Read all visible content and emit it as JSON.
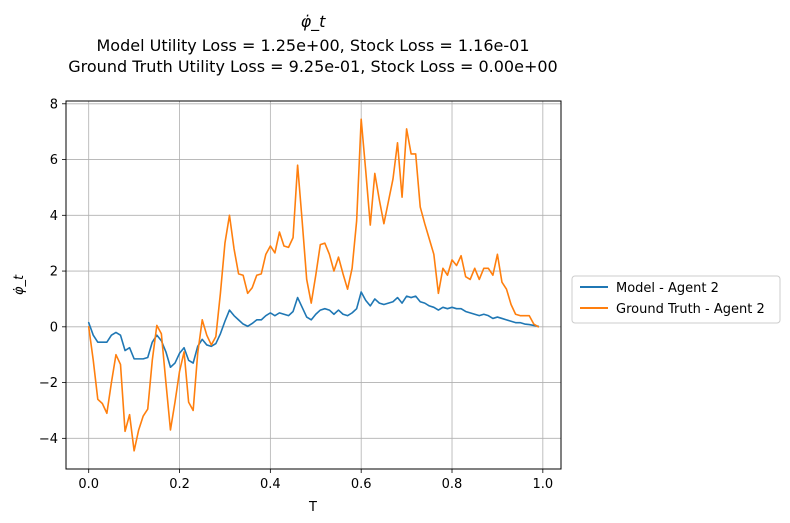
{
  "chart_data": {
    "type": "line",
    "title_symbol": "φ̇_t",
    "title_lines": [
      "Model Utility Loss = 1.25e+00, Stock Loss = 1.16e-01",
      "Ground Truth Utility Loss = 9.25e-01, Stock Loss = 0.00e+00"
    ],
    "xlabel": "T",
    "ylabel": "φ̇_t",
    "xlim": [
      -0.05,
      1.04
    ],
    "ylim": [
      -5.1,
      8.1
    ],
    "xticks": [
      0.0,
      0.2,
      0.4,
      0.6,
      0.8,
      1.0
    ],
    "xtick_labels": [
      "0.0",
      "0.2",
      "0.4",
      "0.6",
      "0.8",
      "1.0"
    ],
    "yticks": [
      -4,
      -2,
      0,
      2,
      4,
      6,
      8
    ],
    "ytick_labels": [
      "−4",
      "−2",
      "0",
      "2",
      "4",
      "6",
      "8"
    ],
    "grid": true,
    "legend_position": "outside-right",
    "series": [
      {
        "name": "Model - Agent 2",
        "color": "#1f77b4",
        "points": [
          [
            0.0,
            0.15
          ],
          [
            0.01,
            -0.3
          ],
          [
            0.02,
            -0.55
          ],
          [
            0.03,
            -0.55
          ],
          [
            0.04,
            -0.55
          ],
          [
            0.05,
            -0.3
          ],
          [
            0.06,
            -0.2
          ],
          [
            0.07,
            -0.3
          ],
          [
            0.08,
            -0.85
          ],
          [
            0.09,
            -0.75
          ],
          [
            0.1,
            -1.15
          ],
          [
            0.11,
            -1.15
          ],
          [
            0.12,
            -1.15
          ],
          [
            0.13,
            -1.1
          ],
          [
            0.14,
            -0.55
          ],
          [
            0.15,
            -0.3
          ],
          [
            0.16,
            -0.5
          ],
          [
            0.17,
            -0.9
          ],
          [
            0.18,
            -1.45
          ],
          [
            0.19,
            -1.3
          ],
          [
            0.2,
            -0.95
          ],
          [
            0.21,
            -0.75
          ],
          [
            0.22,
            -1.2
          ],
          [
            0.23,
            -1.3
          ],
          [
            0.24,
            -0.7
          ],
          [
            0.25,
            -0.45
          ],
          [
            0.26,
            -0.65
          ],
          [
            0.27,
            -0.7
          ],
          [
            0.28,
            -0.6
          ],
          [
            0.29,
            -0.25
          ],
          [
            0.3,
            0.2
          ],
          [
            0.31,
            0.6
          ],
          [
            0.32,
            0.4
          ],
          [
            0.33,
            0.25
          ],
          [
            0.34,
            0.1
          ],
          [
            0.35,
            0.02
          ],
          [
            0.36,
            0.12
          ],
          [
            0.37,
            0.25
          ],
          [
            0.38,
            0.25
          ],
          [
            0.39,
            0.4
          ],
          [
            0.4,
            0.5
          ],
          [
            0.41,
            0.4
          ],
          [
            0.42,
            0.5
          ],
          [
            0.43,
            0.45
          ],
          [
            0.44,
            0.4
          ],
          [
            0.45,
            0.55
          ],
          [
            0.46,
            1.05
          ],
          [
            0.47,
            0.7
          ],
          [
            0.48,
            0.35
          ],
          [
            0.49,
            0.25
          ],
          [
            0.5,
            0.45
          ],
          [
            0.51,
            0.6
          ],
          [
            0.52,
            0.65
          ],
          [
            0.53,
            0.6
          ],
          [
            0.54,
            0.45
          ],
          [
            0.55,
            0.6
          ],
          [
            0.56,
            0.45
          ],
          [
            0.57,
            0.4
          ],
          [
            0.58,
            0.5
          ],
          [
            0.59,
            0.65
          ],
          [
            0.6,
            1.25
          ],
          [
            0.61,
            0.95
          ],
          [
            0.62,
            0.75
          ],
          [
            0.63,
            1.0
          ],
          [
            0.64,
            0.85
          ],
          [
            0.65,
            0.8
          ],
          [
            0.66,
            0.85
          ],
          [
            0.67,
            0.9
          ],
          [
            0.68,
            1.05
          ],
          [
            0.69,
            0.85
          ],
          [
            0.7,
            1.1
          ],
          [
            0.71,
            1.05
          ],
          [
            0.72,
            1.1
          ],
          [
            0.73,
            0.9
          ],
          [
            0.74,
            0.85
          ],
          [
            0.75,
            0.75
          ],
          [
            0.76,
            0.7
          ],
          [
            0.77,
            0.6
          ],
          [
            0.78,
            0.7
          ],
          [
            0.79,
            0.65
          ],
          [
            0.8,
            0.7
          ],
          [
            0.81,
            0.65
          ],
          [
            0.82,
            0.65
          ],
          [
            0.83,
            0.55
          ],
          [
            0.84,
            0.5
          ],
          [
            0.85,
            0.45
          ],
          [
            0.86,
            0.4
          ],
          [
            0.87,
            0.45
          ],
          [
            0.88,
            0.4
          ],
          [
            0.89,
            0.3
          ],
          [
            0.9,
            0.35
          ],
          [
            0.91,
            0.3
          ],
          [
            0.92,
            0.25
          ],
          [
            0.93,
            0.2
          ],
          [
            0.94,
            0.15
          ],
          [
            0.95,
            0.15
          ],
          [
            0.96,
            0.1
          ],
          [
            0.97,
            0.08
          ],
          [
            0.98,
            0.05
          ],
          [
            0.99,
            0.02
          ]
        ]
      },
      {
        "name": "Ground Truth - Agent 2",
        "color": "#ff7f0e",
        "points": [
          [
            0.0,
            0.0
          ],
          [
            0.01,
            -1.2
          ],
          [
            0.02,
            -2.6
          ],
          [
            0.03,
            -2.75
          ],
          [
            0.04,
            -3.1
          ],
          [
            0.05,
            -2.0
          ],
          [
            0.06,
            -1.0
          ],
          [
            0.07,
            -1.35
          ],
          [
            0.08,
            -3.75
          ],
          [
            0.09,
            -3.15
          ],
          [
            0.1,
            -4.45
          ],
          [
            0.11,
            -3.7
          ],
          [
            0.12,
            -3.2
          ],
          [
            0.13,
            -2.95
          ],
          [
            0.14,
            -1.2
          ],
          [
            0.15,
            0.05
          ],
          [
            0.16,
            -0.25
          ],
          [
            0.17,
            -2.0
          ],
          [
            0.18,
            -3.7
          ],
          [
            0.19,
            -2.7
          ],
          [
            0.2,
            -1.6
          ],
          [
            0.21,
            -0.9
          ],
          [
            0.22,
            -2.7
          ],
          [
            0.23,
            -3.0
          ],
          [
            0.24,
            -0.95
          ],
          [
            0.25,
            0.25
          ],
          [
            0.26,
            -0.3
          ],
          [
            0.27,
            -0.65
          ],
          [
            0.28,
            -0.35
          ],
          [
            0.29,
            1.2
          ],
          [
            0.3,
            3.0
          ],
          [
            0.31,
            4.0
          ],
          [
            0.32,
            2.8
          ],
          [
            0.33,
            1.9
          ],
          [
            0.34,
            1.85
          ],
          [
            0.35,
            1.2
          ],
          [
            0.36,
            1.4
          ],
          [
            0.37,
            1.85
          ],
          [
            0.38,
            1.9
          ],
          [
            0.39,
            2.6
          ],
          [
            0.4,
            2.9
          ],
          [
            0.41,
            2.65
          ],
          [
            0.42,
            3.4
          ],
          [
            0.43,
            2.9
          ],
          [
            0.44,
            2.85
          ],
          [
            0.45,
            3.2
          ],
          [
            0.46,
            5.8
          ],
          [
            0.47,
            3.8
          ],
          [
            0.48,
            1.7
          ],
          [
            0.49,
            0.85
          ],
          [
            0.5,
            1.85
          ],
          [
            0.51,
            2.95
          ],
          [
            0.52,
            3.0
          ],
          [
            0.53,
            2.6
          ],
          [
            0.54,
            2.0
          ],
          [
            0.55,
            2.5
          ],
          [
            0.56,
            1.9
          ],
          [
            0.57,
            1.35
          ],
          [
            0.58,
            2.1
          ],
          [
            0.59,
            3.8
          ],
          [
            0.6,
            7.45
          ],
          [
            0.61,
            5.6
          ],
          [
            0.62,
            3.65
          ],
          [
            0.63,
            5.5
          ],
          [
            0.64,
            4.55
          ],
          [
            0.65,
            3.7
          ],
          [
            0.66,
            4.5
          ],
          [
            0.67,
            5.3
          ],
          [
            0.68,
            6.6
          ],
          [
            0.69,
            4.65
          ],
          [
            0.7,
            7.1
          ],
          [
            0.71,
            6.2
          ],
          [
            0.72,
            6.2
          ],
          [
            0.73,
            4.3
          ],
          [
            0.74,
            3.7
          ],
          [
            0.75,
            3.15
          ],
          [
            0.76,
            2.6
          ],
          [
            0.77,
            1.2
          ],
          [
            0.78,
            2.1
          ],
          [
            0.79,
            1.85
          ],
          [
            0.8,
            2.4
          ],
          [
            0.81,
            2.2
          ],
          [
            0.82,
            2.55
          ],
          [
            0.83,
            1.8
          ],
          [
            0.84,
            1.7
          ],
          [
            0.85,
            2.1
          ],
          [
            0.86,
            1.7
          ],
          [
            0.87,
            2.1
          ],
          [
            0.88,
            2.1
          ],
          [
            0.89,
            1.85
          ],
          [
            0.9,
            2.6
          ],
          [
            0.91,
            1.6
          ],
          [
            0.92,
            1.35
          ],
          [
            0.93,
            0.8
          ],
          [
            0.94,
            0.45
          ],
          [
            0.95,
            0.4
          ],
          [
            0.96,
            0.4
          ],
          [
            0.97,
            0.4
          ],
          [
            0.98,
            0.1
          ],
          [
            0.99,
            0.0
          ]
        ]
      }
    ]
  }
}
